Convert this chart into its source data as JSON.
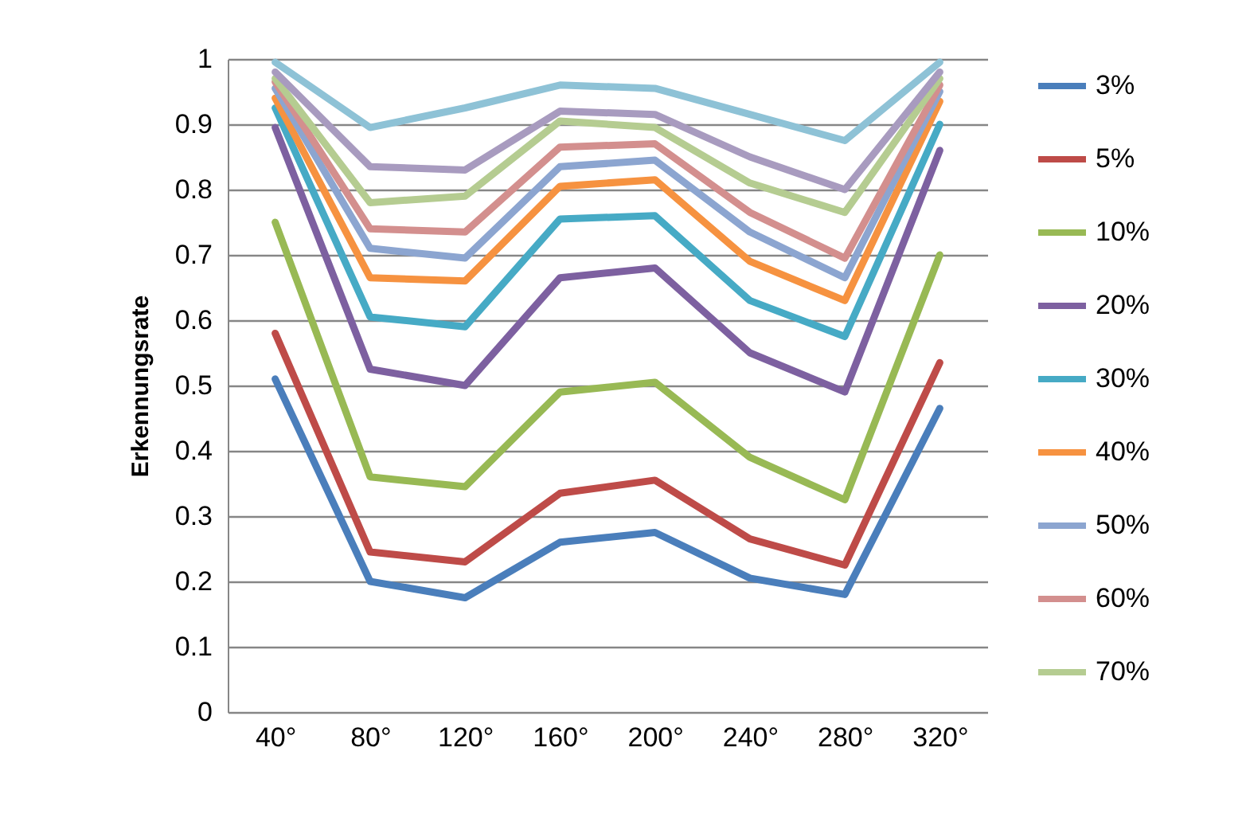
{
  "chart_data": {
    "type": "line",
    "ylabel": "Erkennungsrate",
    "categories": [
      "40°",
      "80°",
      "120°",
      "160°",
      "200°",
      "240°",
      "280°",
      "320°"
    ],
    "ylim": [
      0,
      1
    ],
    "yticks": [
      0,
      0.1,
      0.2,
      0.3,
      0.4,
      0.5,
      0.6,
      0.7,
      0.8,
      0.9,
      1
    ],
    "grid": "y",
    "legend": "right",
    "marker": "none",
    "series": [
      {
        "name": "3%",
        "color": "#4a7ebb",
        "values": [
          0.51,
          0.2,
          0.175,
          0.26,
          0.275,
          0.205,
          0.18,
          0.465
        ]
      },
      {
        "name": "5%",
        "color": "#be4b48",
        "values": [
          0.58,
          0.245,
          0.23,
          0.335,
          0.355,
          0.265,
          0.225,
          0.535
        ]
      },
      {
        "name": "10%",
        "color": "#98b954",
        "values": [
          0.75,
          0.36,
          0.345,
          0.49,
          0.505,
          0.39,
          0.325,
          0.7
        ]
      },
      {
        "name": "20%",
        "color": "#7d60a0",
        "values": [
          0.895,
          0.525,
          0.5,
          0.665,
          0.68,
          0.55,
          0.49,
          0.86
        ]
      },
      {
        "name": "30%",
        "color": "#46aac5",
        "values": [
          0.925,
          0.605,
          0.59,
          0.755,
          0.76,
          0.63,
          0.575,
          0.9
        ]
      },
      {
        "name": "40%",
        "color": "#f69240",
        "values": [
          0.94,
          0.665,
          0.66,
          0.805,
          0.815,
          0.69,
          0.63,
          0.935
        ]
      },
      {
        "name": "50%",
        "color": "#8ca5d0",
        "values": [
          0.955,
          0.71,
          0.695,
          0.835,
          0.845,
          0.735,
          0.665,
          0.95
        ]
      },
      {
        "name": "60%",
        "color": "#d38f8e",
        "values": [
          0.965,
          0.74,
          0.735,
          0.865,
          0.87,
          0.765,
          0.695,
          0.96
        ]
      },
      {
        "name": "70%",
        "color": "#b5cc91",
        "values": [
          0.97,
          0.78,
          0.79,
          0.905,
          0.895,
          0.81,
          0.765,
          0.97
        ]
      },
      {
        "color": "#a89bbf",
        "values": [
          0.98,
          0.835,
          0.83,
          0.92,
          0.915,
          0.85,
          0.8,
          0.98
        ]
      },
      {
        "color": "#8ec2d6",
        "values": [
          0.995,
          0.895,
          0.925,
          0.96,
          0.955,
          0.915,
          0.875,
          0.995
        ]
      }
    ]
  }
}
